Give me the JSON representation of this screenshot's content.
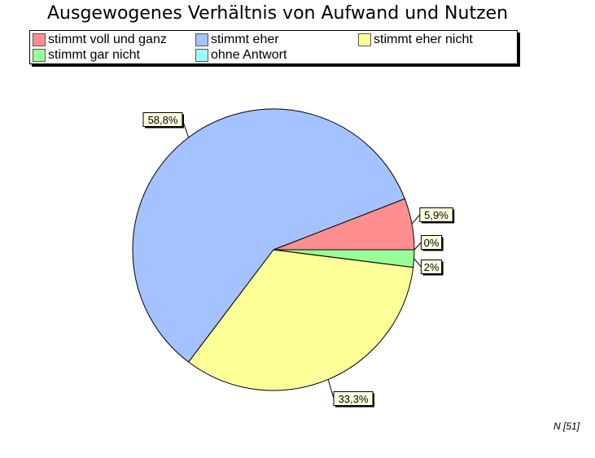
{
  "chart_data": {
    "type": "pie",
    "title": "Ausgewogenes Verhältnis von Aufwand und Nutzen",
    "slices": [
      {
        "label": "stimmt voll und ganz",
        "value": 5.9,
        "display": "5,9%",
        "color": "#ff8f8f"
      },
      {
        "label": "stimmt eher",
        "value": 58.8,
        "display": "58,8%",
        "color": "#a4c2ff"
      },
      {
        "label": "stimmt eher nicht",
        "value": 33.3,
        "display": "33,3%",
        "color": "#ffff98"
      },
      {
        "label": "stimmt gar nicht",
        "value": 2,
        "display": "2%",
        "color": "#98ff98"
      },
      {
        "label": "ohne Antwort",
        "value": 0,
        "display": "0%",
        "color": "#98ffff"
      }
    ],
    "legend_position": "top"
  },
  "footer": {
    "n_label": "N [51]"
  }
}
